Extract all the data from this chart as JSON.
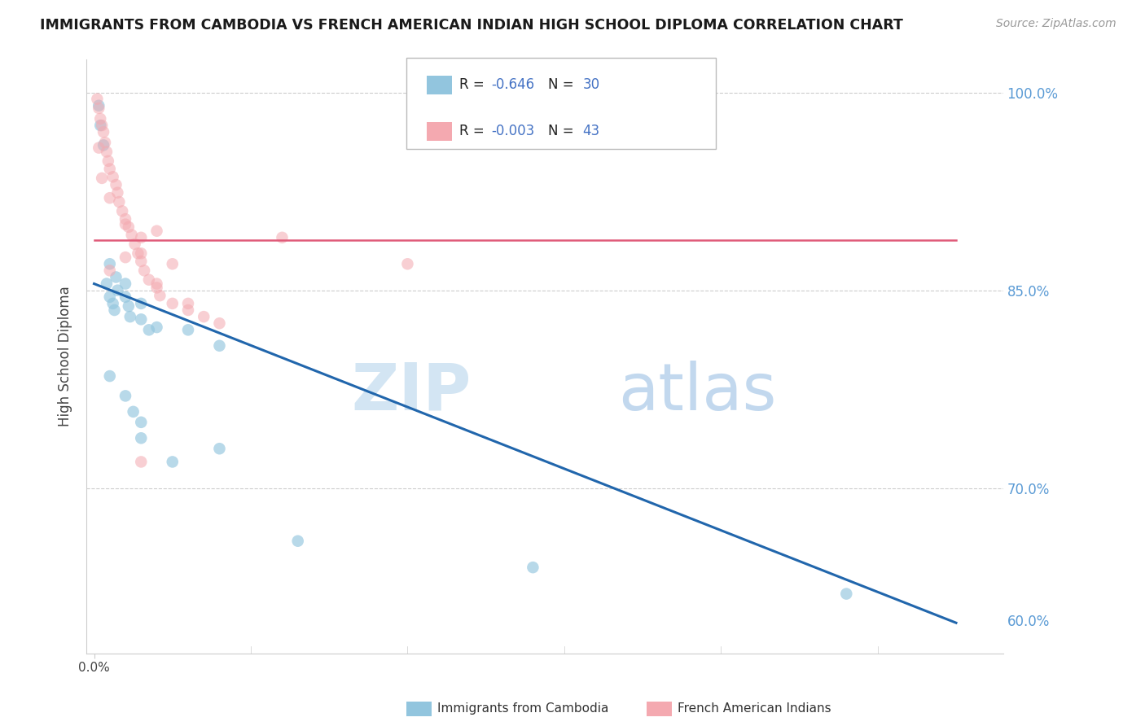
{
  "title": "IMMIGRANTS FROM CAMBODIA VS FRENCH AMERICAN INDIAN HIGH SCHOOL DIPLOMA CORRELATION CHART",
  "source": "Source: ZipAtlas.com",
  "ylabel": "High School Diploma",
  "background_color": "#ffffff",
  "watermark_text": "ZIPatlas",
  "legend_r1": "-0.646",
  "legend_n1": "30",
  "legend_r2": "-0.003",
  "legend_n2": "43",
  "blue_color": "#92c5de",
  "blue_edge_color": "#92c5de",
  "pink_color": "#f4a9b0",
  "pink_edge_color": "#f4a9b0",
  "blue_line_color": "#2166ac",
  "pink_line_color": "#e05c7a",
  "r_value_color": "#4472c4",
  "n_value_color": "#4472c4",
  "legend_text_color": "#222222",
  "ytick_color": "#5b9bd5",
  "xtick_color": "#444444",
  "grid_color": "#cccccc",
  "spine_color": "#cccccc",
  "ylabel_color": "#444444",
  "xlim": [
    -0.0005,
    0.058
  ],
  "ylim": [
    0.575,
    1.025
  ],
  "yticks": [
    0.6,
    0.7,
    0.85,
    1.0
  ],
  "ytick_labels": [
    "60.0%",
    "70.0%",
    "85.0%",
    "100.0%"
  ],
  "grid_yticks": [
    0.55,
    0.7,
    0.85,
    1.0
  ],
  "blue_scatter": [
    [
      0.0003,
      0.99
    ],
    [
      0.0004,
      0.975
    ],
    [
      0.0006,
      0.96
    ],
    [
      0.0008,
      0.855
    ],
    [
      0.001,
      0.87
    ],
    [
      0.001,
      0.845
    ],
    [
      0.0012,
      0.84
    ],
    [
      0.0013,
      0.835
    ],
    [
      0.0014,
      0.86
    ],
    [
      0.0015,
      0.85
    ],
    [
      0.002,
      0.855
    ],
    [
      0.002,
      0.845
    ],
    [
      0.0022,
      0.838
    ],
    [
      0.0023,
      0.83
    ],
    [
      0.003,
      0.84
    ],
    [
      0.003,
      0.828
    ],
    [
      0.0035,
      0.82
    ],
    [
      0.004,
      0.822
    ],
    [
      0.006,
      0.82
    ],
    [
      0.008,
      0.808
    ],
    [
      0.002,
      0.77
    ],
    [
      0.0025,
      0.758
    ],
    [
      0.003,
      0.75
    ],
    [
      0.003,
      0.738
    ],
    [
      0.005,
      0.72
    ],
    [
      0.008,
      0.73
    ],
    [
      0.013,
      0.66
    ],
    [
      0.028,
      0.64
    ],
    [
      0.048,
      0.62
    ],
    [
      0.001,
      0.785
    ]
  ],
  "pink_scatter": [
    [
      0.0002,
      0.995
    ],
    [
      0.0003,
      0.988
    ],
    [
      0.0004,
      0.98
    ],
    [
      0.0005,
      0.975
    ],
    [
      0.0006,
      0.97
    ],
    [
      0.0007,
      0.962
    ],
    [
      0.0008,
      0.955
    ],
    [
      0.0009,
      0.948
    ],
    [
      0.001,
      0.942
    ],
    [
      0.0012,
      0.936
    ],
    [
      0.0014,
      0.93
    ],
    [
      0.0015,
      0.924
    ],
    [
      0.0016,
      0.917
    ],
    [
      0.0018,
      0.91
    ],
    [
      0.002,
      0.904
    ],
    [
      0.0022,
      0.898
    ],
    [
      0.0024,
      0.892
    ],
    [
      0.0026,
      0.885
    ],
    [
      0.0028,
      0.878
    ],
    [
      0.003,
      0.872
    ],
    [
      0.0032,
      0.865
    ],
    [
      0.0035,
      0.858
    ],
    [
      0.004,
      0.852
    ],
    [
      0.0042,
      0.846
    ],
    [
      0.005,
      0.84
    ],
    [
      0.006,
      0.835
    ],
    [
      0.007,
      0.83
    ],
    [
      0.008,
      0.825
    ],
    [
      0.003,
      0.89
    ],
    [
      0.005,
      0.87
    ],
    [
      0.012,
      0.89
    ],
    [
      0.02,
      0.87
    ],
    [
      0.003,
      0.72
    ],
    [
      0.004,
      0.855
    ],
    [
      0.002,
      0.9
    ],
    [
      0.001,
      0.92
    ],
    [
      0.0005,
      0.935
    ],
    [
      0.001,
      0.865
    ],
    [
      0.002,
      0.875
    ],
    [
      0.006,
      0.84
    ],
    [
      0.004,
      0.895
    ],
    [
      0.003,
      0.878
    ],
    [
      0.0003,
      0.958
    ]
  ],
  "blue_trend_x": [
    0.0,
    0.055
  ],
  "blue_trend_y": [
    0.855,
    0.598
  ],
  "pink_trend_x": [
    0.0,
    0.055
  ],
  "pink_trend_y": [
    0.888,
    0.888
  ]
}
